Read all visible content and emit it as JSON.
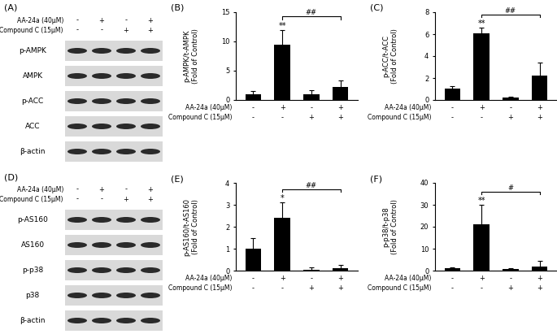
{
  "chart_data": [
    {
      "type": "bar",
      "title": "(B)",
      "y_label": "p-AMPK/t-AMPK\n(Fold of Control)",
      "categories": [
        null,
        null,
        null,
        null
      ],
      "values": [
        1.0,
        9.4,
        1.0,
        2.2
      ],
      "errors": [
        0.5,
        2.6,
        0.6,
        1.2
      ],
      "color": "#000000",
      "ylim": [
        0,
        15
      ],
      "yticks": [
        0,
        5,
        10,
        15
      ],
      "tick_labels": "y",
      "treatments": [
        {
          "name": "AA-24a (40μM)",
          "signs": [
            "-",
            "+",
            "-",
            "+"
          ]
        },
        {
          "name": "Compound C (15μM)",
          "signs": [
            "-",
            "-",
            "+",
            "+"
          ]
        }
      ],
      "annotations": [
        {
          "text": "**",
          "category": 1
        }
      ],
      "comparison": {
        "text": "##",
        "from": 1,
        "to": 3
      }
    },
    {
      "type": "bar",
      "title": "(C)",
      "y_label": "p-ACC/t-ACC\n(Fold of Control)",
      "categories": [
        null,
        null,
        null,
        null
      ],
      "values": [
        1.0,
        6.1,
        0.2,
        2.2
      ],
      "errors": [
        0.25,
        0.5,
        0.1,
        1.2
      ],
      "color": "#000000",
      "ylim": [
        0,
        8
      ],
      "yticks": [
        0,
        2,
        4,
        6,
        8
      ],
      "tick_labels": "y",
      "treatments": [
        {
          "name": "AA-24a (40μM)",
          "signs": [
            "-",
            "+",
            "-",
            "+"
          ]
        },
        {
          "name": "Compound C (15μM)",
          "signs": [
            "-",
            "-",
            "+",
            "+"
          ]
        }
      ],
      "annotations": [
        {
          "text": "**",
          "category": 1
        }
      ],
      "comparison": {
        "text": "##",
        "from": 1,
        "to": 3
      }
    },
    {
      "type": "bar",
      "title": "(E)",
      "y_label": "p-AS160/t-AS160\n(Fold of Control)",
      "categories": [
        null,
        null,
        null,
        null
      ],
      "values": [
        1.0,
        2.4,
        0.05,
        0.1
      ],
      "errors": [
        0.5,
        0.7,
        0.1,
        0.15
      ],
      "color": "#000000",
      "ylim": [
        0,
        4
      ],
      "yticks": [
        0,
        1,
        2,
        3,
        4
      ],
      "tick_labels": "y",
      "treatments": [
        {
          "name": "AA-24a (40μM)",
          "signs": [
            "-",
            "+",
            "-",
            "+"
          ]
        },
        {
          "name": "Compound C (15μM)",
          "signs": [
            "-",
            "-",
            "+",
            "+"
          ]
        }
      ],
      "annotations": [
        {
          "text": "*",
          "category": 1
        }
      ],
      "comparison": {
        "text": "##",
        "from": 1,
        "to": 3
      }
    },
    {
      "type": "bar",
      "title": "(F)",
      "y_label": "p-p38/t-p38\n(Fold of Control)",
      "categories": [
        null,
        null,
        null,
        null
      ],
      "values": [
        1.0,
        21,
        0.7,
        2.0
      ],
      "errors": [
        0.3,
        9,
        0.5,
        2.5
      ],
      "color": "#000000",
      "ylim": [
        0,
        40
      ],
      "yticks": [
        0,
        10,
        20,
        30,
        40
      ],
      "tick_labels": "y",
      "treatments": [
        {
          "name": "AA-24a (40μM)",
          "signs": [
            "-",
            "+",
            "-",
            "+"
          ]
        },
        {
          "name": "Compound C (15μM)",
          "signs": [
            "-",
            "-",
            "+",
            "+"
          ]
        }
      ],
      "annotations": [
        {
          "text": "**",
          "category": 1
        }
      ],
      "comparison": {
        "text": "#",
        "from": 1,
        "to": 3
      }
    }
  ],
  "blots": [
    {
      "title": "(A)",
      "treatments": [
        {
          "name": "AA-24a (40μM)",
          "signs": [
            "-",
            "+",
            "-",
            "+"
          ]
        },
        {
          "name": "Compound C (15μM)",
          "signs": [
            "-",
            "-",
            "+",
            "+"
          ]
        }
      ],
      "rows": [
        "p-AMPK",
        "AMPK",
        "p-ACC",
        "ACC",
        "β-actin"
      ]
    },
    {
      "title": "(D)",
      "treatments": [
        {
          "name": "AA-24a (40μM)",
          "signs": [
            "-",
            "+",
            "-",
            "+"
          ]
        },
        {
          "name": "Compound C (15μM)",
          "signs": [
            "-",
            "-",
            "+",
            "+"
          ]
        }
      ],
      "rows": [
        "p-AS160",
        "AS160",
        "p-p38",
        "p38",
        "β-actin"
      ]
    }
  ]
}
